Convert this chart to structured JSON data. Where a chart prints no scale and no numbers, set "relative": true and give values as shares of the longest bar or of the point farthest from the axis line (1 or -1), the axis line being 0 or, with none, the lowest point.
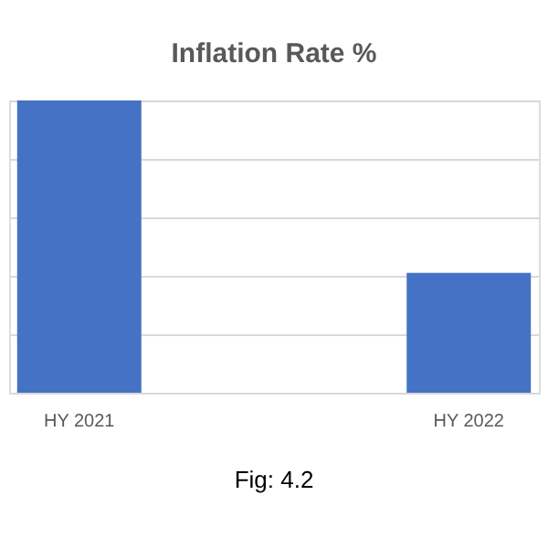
{
  "chart_data": {
    "type": "bar",
    "title": "Inflation Rate %",
    "categories": [
      "HY 2021",
      "HY 2022"
    ],
    "values": [
      1,
      0.41
    ],
    "color": "#4472c4",
    "relative": true,
    "grid": "y",
    "annotations": [
      "Fig: 4.2"
    ]
  }
}
